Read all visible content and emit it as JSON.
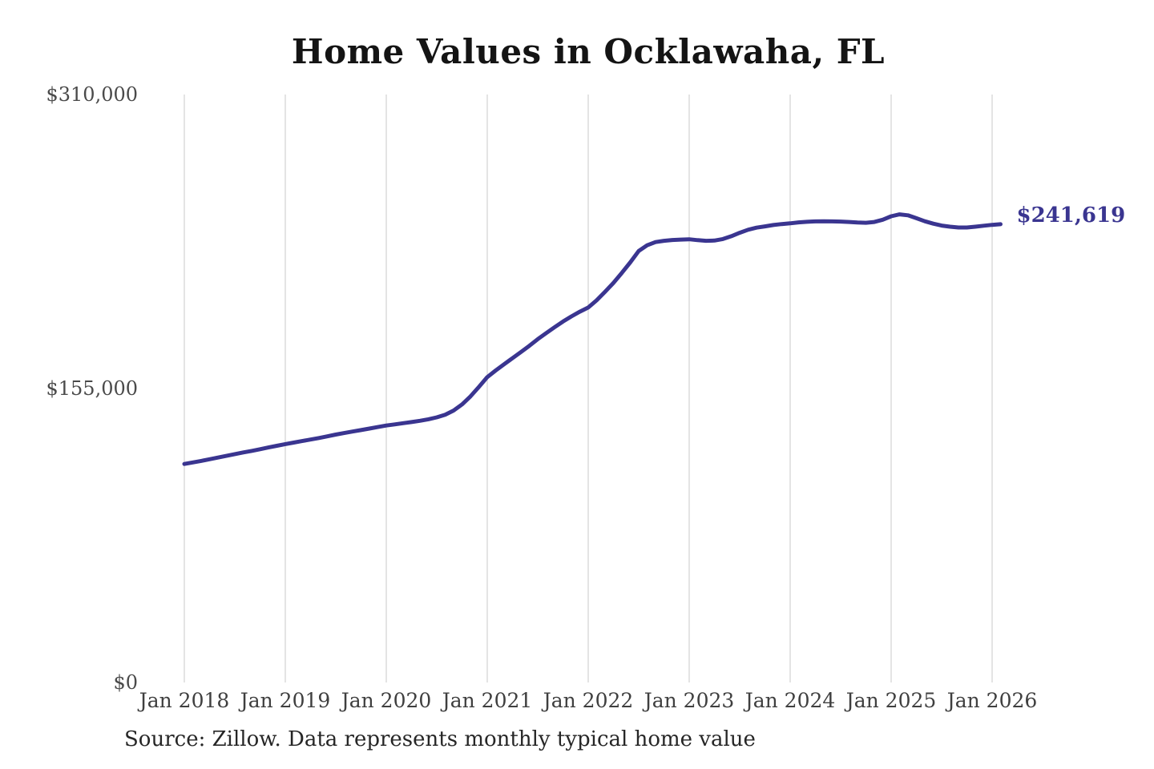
{
  "header": {
    "title": "Home Values in Ocklawaha, FL"
  },
  "footer": {
    "source": "Source: Zillow. Data represents monthly typical home value"
  },
  "chart_data": {
    "type": "line",
    "title": "Home Values in Ocklawaha, FL",
    "end_label": "$241,619",
    "last_value": 241619,
    "line_color": "#3a3590",
    "grid_color": "#c9c9c9",
    "grid": "vertical-only",
    "legend": "none",
    "ylim": [
      0,
      310000
    ],
    "y_tick_values": [
      0,
      155000,
      310000
    ],
    "y_tick_labels": [
      "$0",
      "$155,000",
      "$310,000"
    ],
    "x_tick_positions": [
      0,
      12,
      24,
      36,
      48,
      60,
      72,
      84,
      96
    ],
    "x_tick_labels": [
      "Jan 2018",
      "Jan 2019",
      "Jan 2020",
      "Jan 2021",
      "Jan 2022",
      "Jan 2023",
      "Jan 2024",
      "Jan 2025",
      "Jan 2026"
    ],
    "x": [
      "2018-01",
      "2018-02",
      "2018-03",
      "2018-04",
      "2018-05",
      "2018-06",
      "2018-07",
      "2018-08",
      "2018-09",
      "2018-10",
      "2018-11",
      "2018-12",
      "2019-01",
      "2019-02",
      "2019-03",
      "2019-04",
      "2019-05",
      "2019-06",
      "2019-07",
      "2019-08",
      "2019-09",
      "2019-10",
      "2019-11",
      "2019-12",
      "2020-01",
      "2020-02",
      "2020-03",
      "2020-04",
      "2020-05",
      "2020-06",
      "2020-07",
      "2020-08",
      "2020-09",
      "2020-10",
      "2020-11",
      "2020-12",
      "2021-01",
      "2021-02",
      "2021-03",
      "2021-04",
      "2021-05",
      "2021-06",
      "2021-07",
      "2021-08",
      "2021-09",
      "2021-10",
      "2021-11",
      "2021-12",
      "2022-01",
      "2022-02",
      "2022-03",
      "2022-04",
      "2022-05",
      "2022-06",
      "2022-07",
      "2022-08",
      "2022-09",
      "2022-10",
      "2022-11",
      "2022-12",
      "2023-01",
      "2023-02",
      "2023-03",
      "2023-04",
      "2023-05",
      "2023-06",
      "2023-07",
      "2023-08",
      "2023-09",
      "2023-10",
      "2023-11",
      "2023-12",
      "2024-01",
      "2024-02",
      "2024-03",
      "2024-04",
      "2024-05",
      "2024-06",
      "2024-07",
      "2024-08",
      "2024-09",
      "2024-10",
      "2024-11",
      "2024-12",
      "2025-01",
      "2025-02",
      "2025-03",
      "2025-04",
      "2025-05",
      "2025-06",
      "2025-07",
      "2025-08",
      "2025-09",
      "2025-10",
      "2025-11",
      "2025-12",
      "2026-01",
      "2026-02"
    ],
    "values": [
      115200,
      116000,
      116800,
      117700,
      118600,
      119500,
      120400,
      121300,
      122100,
      123000,
      123900,
      124800,
      125700,
      126500,
      127300,
      128100,
      128900,
      129800,
      130700,
      131500,
      132300,
      133100,
      133900,
      134700,
      135500,
      136100,
      136700,
      137300,
      138000,
      138800,
      139800,
      141200,
      143400,
      146600,
      150800,
      155800,
      161000,
      164500,
      167800,
      171000,
      174200,
      177500,
      181000,
      184200,
      187300,
      190300,
      193000,
      195500,
      197700,
      201500,
      206000,
      210700,
      216000,
      221500,
      227500,
      230500,
      232200,
      232900,
      233300,
      233500,
      233700,
      233200,
      232900,
      233000,
      233800,
      235300,
      237100,
      238700,
      239800,
      240500,
      241200,
      241700,
      242100,
      242600,
      242900,
      243100,
      243200,
      243100,
      243000,
      242800,
      242500,
      242400,
      242800,
      244000,
      245800,
      246800,
      246300,
      244800,
      243200,
      241900,
      240900,
      240300,
      239900,
      239900,
      240300,
      240800,
      241300,
      241619
    ]
  }
}
